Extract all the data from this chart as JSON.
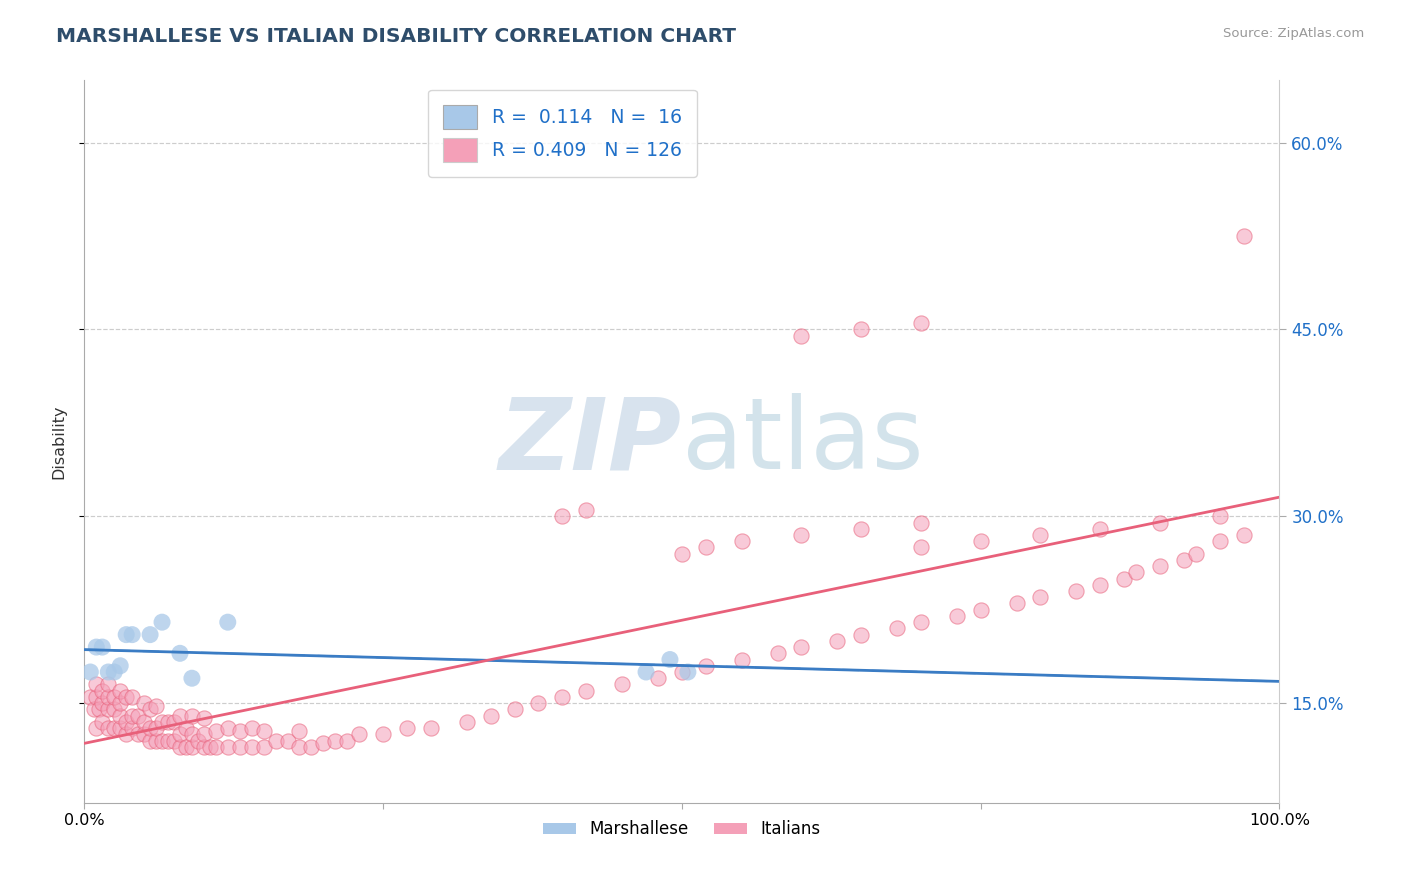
{
  "title": "MARSHALLESE VS ITALIAN DISABILITY CORRELATION CHART",
  "source": "Source: ZipAtlas.com",
  "ylabel": "Disability",
  "xlim": [
    0.0,
    1.0
  ],
  "ylim": [
    0.07,
    0.65
  ],
  "yticks": [
    0.15,
    0.3,
    0.45,
    0.6
  ],
  "ytick_labels": [
    "15.0%",
    "30.0%",
    "45.0%",
    "60.0%"
  ],
  "xtick_labels": [
    "0.0%",
    "100.0%"
  ],
  "marshallese_R": "0.114",
  "marshallese_N": "16",
  "italians_R": "0.409",
  "italians_N": "126",
  "blue_scatter_color": "#a8c8e8",
  "pink_scatter_color": "#f4a0b8",
  "blue_line_color": "#3a7cc4",
  "pink_line_color": "#e8607a",
  "legend_text_color": "#2070c8",
  "title_color": "#2e4d6b",
  "watermark_color": "#dce8f0",
  "watermark_text": "ZIPatlas",
  "grid_color": "#c8c8c8",
  "marshallese_x": [
    0.005,
    0.01,
    0.015,
    0.02,
    0.025,
    0.03,
    0.035,
    0.04,
    0.055,
    0.065,
    0.08,
    0.09,
    0.12,
    0.47,
    0.49,
    0.505
  ],
  "marshallese_y": [
    0.175,
    0.195,
    0.195,
    0.175,
    0.175,
    0.18,
    0.205,
    0.205,
    0.205,
    0.215,
    0.19,
    0.17,
    0.215,
    0.175,
    0.185,
    0.175
  ],
  "italians_x": [
    0.005,
    0.008,
    0.01,
    0.01,
    0.01,
    0.012,
    0.015,
    0.015,
    0.015,
    0.02,
    0.02,
    0.02,
    0.02,
    0.025,
    0.025,
    0.025,
    0.03,
    0.03,
    0.03,
    0.03,
    0.035,
    0.035,
    0.035,
    0.04,
    0.04,
    0.04,
    0.045,
    0.045,
    0.05,
    0.05,
    0.05,
    0.055,
    0.055,
    0.055,
    0.06,
    0.06,
    0.06,
    0.065,
    0.065,
    0.07,
    0.07,
    0.075,
    0.075,
    0.08,
    0.08,
    0.08,
    0.085,
    0.085,
    0.09,
    0.09,
    0.09,
    0.095,
    0.1,
    0.1,
    0.1,
    0.105,
    0.11,
    0.11,
    0.12,
    0.12,
    0.13,
    0.13,
    0.14,
    0.14,
    0.15,
    0.15,
    0.16,
    0.17,
    0.18,
    0.18,
    0.19,
    0.2,
    0.21,
    0.22,
    0.23,
    0.25,
    0.27,
    0.29,
    0.32,
    0.34,
    0.36,
    0.38,
    0.4,
    0.42,
    0.45,
    0.48,
    0.5,
    0.52,
    0.55,
    0.58,
    0.6,
    0.63,
    0.65,
    0.68,
    0.7,
    0.73,
    0.75,
    0.78,
    0.8,
    0.83,
    0.85,
    0.87,
    0.88,
    0.9,
    0.92,
    0.93,
    0.95,
    0.97,
    0.5,
    0.52,
    0.55,
    0.6,
    0.65,
    0.7,
    0.4,
    0.42,
    0.7,
    0.75,
    0.8,
    0.85,
    0.9,
    0.95,
    0.97,
    0.6,
    0.65,
    0.7
  ],
  "italians_y": [
    0.155,
    0.145,
    0.13,
    0.155,
    0.165,
    0.145,
    0.135,
    0.15,
    0.16,
    0.13,
    0.145,
    0.155,
    0.165,
    0.13,
    0.145,
    0.155,
    0.13,
    0.14,
    0.15,
    0.16,
    0.125,
    0.135,
    0.155,
    0.13,
    0.14,
    0.155,
    0.125,
    0.14,
    0.125,
    0.135,
    0.15,
    0.12,
    0.13,
    0.145,
    0.12,
    0.13,
    0.148,
    0.12,
    0.135,
    0.12,
    0.135,
    0.12,
    0.135,
    0.115,
    0.125,
    0.14,
    0.115,
    0.13,
    0.115,
    0.125,
    0.14,
    0.12,
    0.115,
    0.125,
    0.138,
    0.115,
    0.115,
    0.128,
    0.115,
    0.13,
    0.115,
    0.128,
    0.115,
    0.13,
    0.115,
    0.128,
    0.12,
    0.12,
    0.115,
    0.128,
    0.115,
    0.118,
    0.12,
    0.12,
    0.125,
    0.125,
    0.13,
    0.13,
    0.135,
    0.14,
    0.145,
    0.15,
    0.155,
    0.16,
    0.165,
    0.17,
    0.175,
    0.18,
    0.185,
    0.19,
    0.195,
    0.2,
    0.205,
    0.21,
    0.215,
    0.22,
    0.225,
    0.23,
    0.235,
    0.24,
    0.245,
    0.25,
    0.255,
    0.26,
    0.265,
    0.27,
    0.28,
    0.285,
    0.27,
    0.275,
    0.28,
    0.285,
    0.29,
    0.295,
    0.3,
    0.305,
    0.275,
    0.28,
    0.285,
    0.29,
    0.295,
    0.3,
    0.525,
    0.445,
    0.45,
    0.455
  ]
}
